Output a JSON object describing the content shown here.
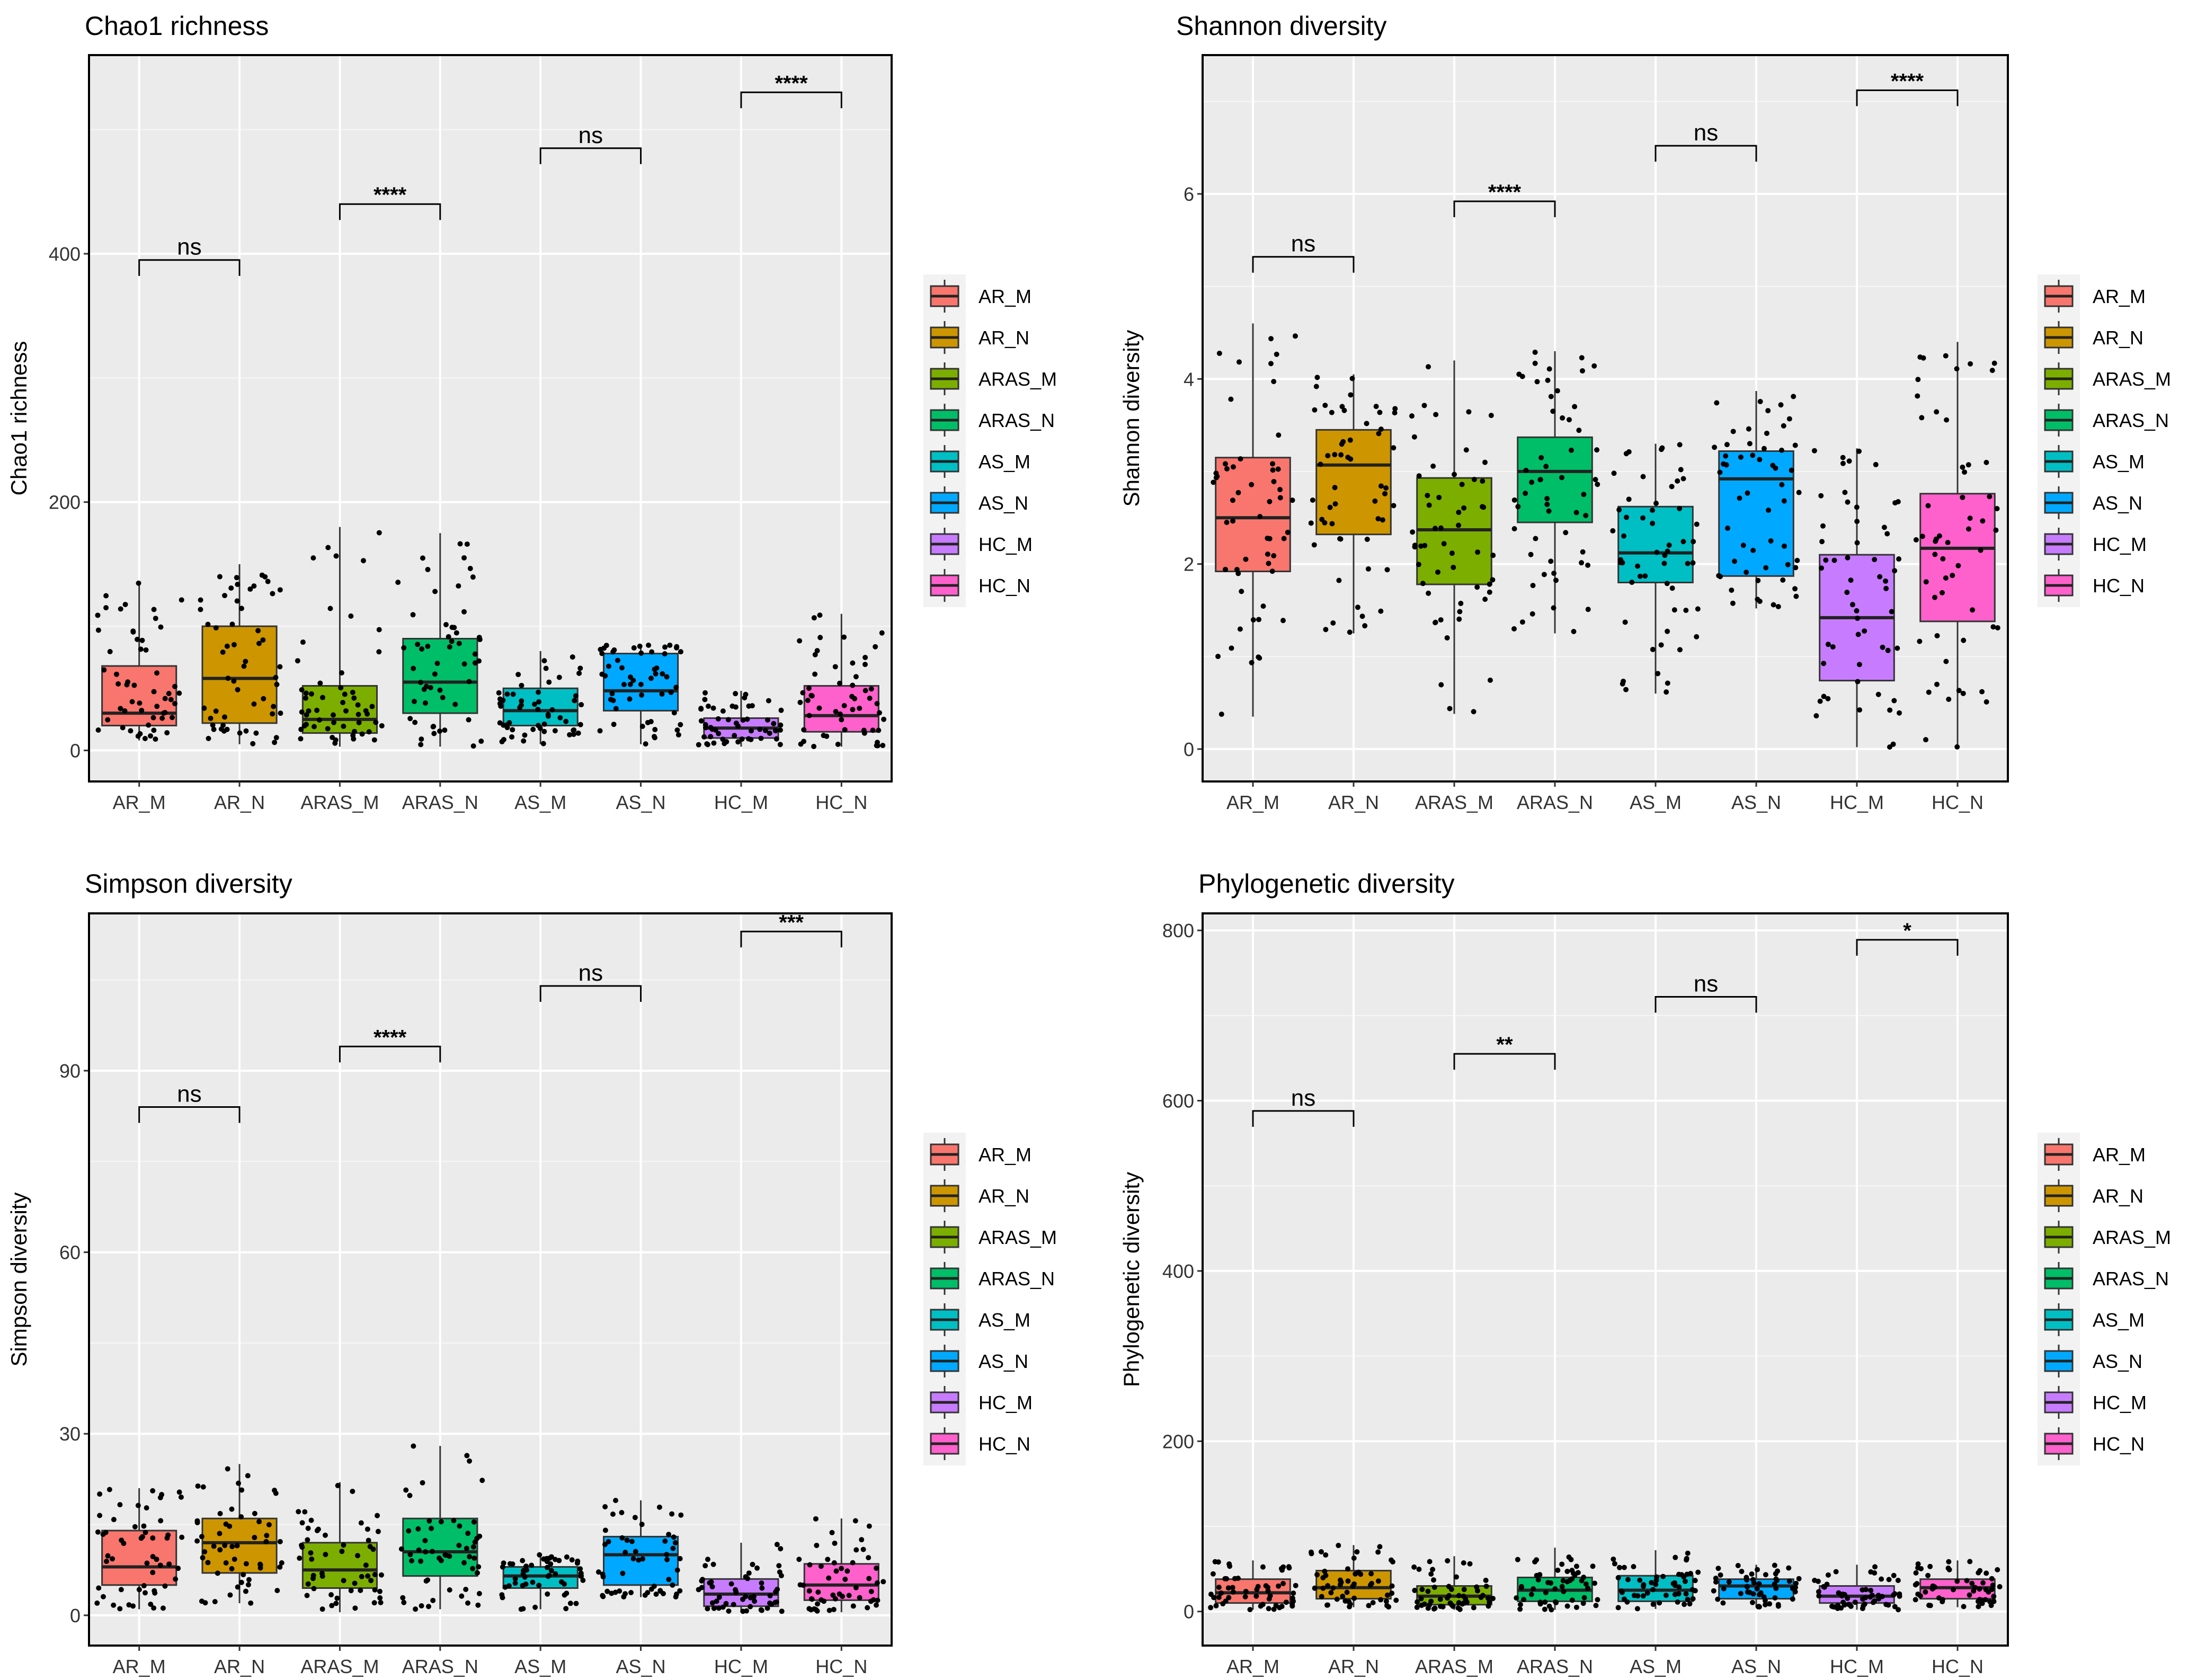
{
  "legend": {
    "groups": [
      "AR_M",
      "AR_N",
      "ARAS_M",
      "ARAS_N",
      "AS_M",
      "AS_N",
      "HC_M",
      "HC_N"
    ],
    "colors": [
      "#F8766D",
      "#CD9600",
      "#7CAE00",
      "#00BE67",
      "#00BFC4",
      "#00A9FF",
      "#C77CFF",
      "#FF61CC"
    ]
  },
  "chart_data": [
    {
      "type": "boxplot",
      "title": "Chao1 richness",
      "ylabel": "Chao1 richness",
      "categories": [
        "AR_M",
        "AR_N",
        "ARAS_M",
        "ARAS_N",
        "AS_M",
        "AS_N",
        "HC_M",
        "HC_N"
      ],
      "ylim": [
        -25,
        560
      ],
      "yticks": [
        0,
        200,
        400
      ],
      "boxes": [
        {
          "q1": 20,
          "median": 30,
          "q3": 68,
          "lo": 8,
          "hi": 135
        },
        {
          "q1": 22,
          "median": 58,
          "q3": 100,
          "lo": 5,
          "hi": 150
        },
        {
          "q1": 14,
          "median": 25,
          "q3": 52,
          "lo": 3,
          "hi": 180
        },
        {
          "q1": 30,
          "median": 55,
          "q3": 90,
          "lo": 3,
          "hi": 175
        },
        {
          "q1": 20,
          "median": 32,
          "q3": 50,
          "lo": 5,
          "hi": 80
        },
        {
          "q1": 32,
          "median": 48,
          "q3": 78,
          "lo": 5,
          "hi": 85
        },
        {
          "q1": 10,
          "median": 18,
          "q3": 26,
          "lo": 3,
          "hi": 48
        },
        {
          "q1": 15,
          "median": 28,
          "q3": 52,
          "lo": 3,
          "hi": 110
        }
      ],
      "comparisons": [
        {
          "pair": [
            "AR_M",
            "AR_N"
          ],
          "label": "ns",
          "y": 395
        },
        {
          "pair": [
            "ARAS_M",
            "ARAS_N"
          ],
          "label": "****",
          "y": 440
        },
        {
          "pair": [
            "AS_M",
            "AS_N"
          ],
          "label": "ns",
          "y": 485
        },
        {
          "pair": [
            "HC_M",
            "HC_N"
          ],
          "label": "****",
          "y": 530
        }
      ]
    },
    {
      "type": "boxplot",
      "title": "Shannon diversity",
      "ylabel": "Shannon diversity",
      "categories": [
        "AR_M",
        "AR_N",
        "ARAS_M",
        "ARAS_N",
        "AS_M",
        "AS_N",
        "HC_M",
        "HC_N"
      ],
      "ylim": [
        -0.35,
        7.5
      ],
      "yticks": [
        0,
        2,
        4,
        6
      ],
      "boxes": [
        {
          "q1": 1.92,
          "median": 2.5,
          "q3": 3.15,
          "lo": 0.35,
          "hi": 4.6
        },
        {
          "q1": 2.32,
          "median": 3.07,
          "q3": 3.45,
          "lo": 1.25,
          "hi": 4.05
        },
        {
          "q1": 1.78,
          "median": 2.37,
          "q3": 2.93,
          "lo": 0.38,
          "hi": 4.2
        },
        {
          "q1": 2.45,
          "median": 3.0,
          "q3": 3.37,
          "lo": 1.25,
          "hi": 4.3
        },
        {
          "q1": 1.8,
          "median": 2.12,
          "q3": 2.62,
          "lo": 0.6,
          "hi": 3.3
        },
        {
          "q1": 1.87,
          "median": 2.92,
          "q3": 3.22,
          "lo": 1.52,
          "hi": 3.87
        },
        {
          "q1": 0.74,
          "median": 1.42,
          "q3": 2.1,
          "lo": 0.02,
          "hi": 3.25
        },
        {
          "q1": 1.38,
          "median": 2.17,
          "q3": 2.76,
          "lo": 0.0,
          "hi": 4.4
        }
      ],
      "comparisons": [
        {
          "pair": [
            "AR_M",
            "AR_N"
          ],
          "label": "ns",
          "y": 5.32
        },
        {
          "pair": [
            "ARAS_M",
            "ARAS_N"
          ],
          "label": "****",
          "y": 5.92
        },
        {
          "pair": [
            "AS_M",
            "AS_N"
          ],
          "label": "ns",
          "y": 6.52
        },
        {
          "pair": [
            "HC_M",
            "HC_N"
          ],
          "label": "****",
          "y": 7.12
        }
      ]
    },
    {
      "type": "boxplot",
      "title": "Simpson diversity",
      "ylabel": "Simpson diversity",
      "categories": [
        "AR_M",
        "AR_N",
        "ARAS_M",
        "ARAS_N",
        "AS_M",
        "AS_N",
        "HC_M",
        "HC_N"
      ],
      "ylim": [
        -5,
        116
      ],
      "yticks": [
        0,
        30,
        60,
        90
      ],
      "boxes": [
        {
          "q1": 5,
          "median": 8,
          "q3": 14,
          "lo": 1,
          "hi": 21
        },
        {
          "q1": 7,
          "median": 12,
          "q3": 16,
          "lo": 2,
          "hi": 25
        },
        {
          "q1": 4.5,
          "median": 7.5,
          "q3": 12,
          "lo": 0.5,
          "hi": 22
        },
        {
          "q1": 6.5,
          "median": 10.5,
          "q3": 16,
          "lo": 1,
          "hi": 28
        },
        {
          "q1": 4.5,
          "median": 6.5,
          "q3": 8,
          "lo": 1,
          "hi": 10
        },
        {
          "q1": 5,
          "median": 10,
          "q3": 13,
          "lo": 3,
          "hi": 19
        },
        {
          "q1": 1.5,
          "median": 3.5,
          "q3": 6,
          "lo": 0.5,
          "hi": 12
        },
        {
          "q1": 2.5,
          "median": 5,
          "q3": 8.5,
          "lo": 0.5,
          "hi": 16
        }
      ],
      "comparisons": [
        {
          "pair": [
            "AR_M",
            "AR_N"
          ],
          "label": "ns",
          "y": 84
        },
        {
          "pair": [
            "ARAS_M",
            "ARAS_N"
          ],
          "label": "****",
          "y": 94
        },
        {
          "pair": [
            "AS_M",
            "AS_N"
          ],
          "label": "ns",
          "y": 104
        },
        {
          "pair": [
            "HC_M",
            "HC_N"
          ],
          "label": "***",
          "y": 113
        }
      ]
    },
    {
      "type": "boxplot",
      "title": "Phylogenetic diversity",
      "ylabel": "Phylogenetic  diversity",
      "categories": [
        "AR_M",
        "AR_N",
        "ARAS_M",
        "ARAS_N",
        "AS_M",
        "AS_N",
        "HC_M",
        "HC_N"
      ],
      "ylim": [
        -40,
        820
      ],
      "yticks": [
        0,
        200,
        400,
        600,
        800
      ],
      "boxes": [
        {
          "q1": 10,
          "median": 22,
          "q3": 38,
          "lo": 2,
          "hi": 60
        },
        {
          "q1": 15,
          "median": 28,
          "q3": 48,
          "lo": 5,
          "hi": 78
        },
        {
          "q1": 8,
          "median": 18,
          "q3": 30,
          "lo": 2,
          "hi": 65
        },
        {
          "q1": 12,
          "median": 25,
          "q3": 40,
          "lo": 2,
          "hi": 75
        },
        {
          "q1": 12,
          "median": 25,
          "q3": 42,
          "lo": 3,
          "hi": 72
        },
        {
          "q1": 15,
          "median": 30,
          "q3": 38,
          "lo": 5,
          "hi": 55
        },
        {
          "q1": 10,
          "median": 18,
          "q3": 30,
          "lo": 2,
          "hi": 55
        },
        {
          "q1": 15,
          "median": 28,
          "q3": 38,
          "lo": 5,
          "hi": 60
        }
      ],
      "comparisons": [
        {
          "pair": [
            "AR_M",
            "AR_N"
          ],
          "label": "ns",
          "y": 588
        },
        {
          "pair": [
            "ARAS_M",
            "ARAS_N"
          ],
          "label": "**",
          "y": 655
        },
        {
          "pair": [
            "AS_M",
            "AS_N"
          ],
          "label": "ns",
          "y": 722
        },
        {
          "pair": [
            "HC_M",
            "HC_N"
          ],
          "label": "*",
          "y": 789
        }
      ]
    }
  ]
}
